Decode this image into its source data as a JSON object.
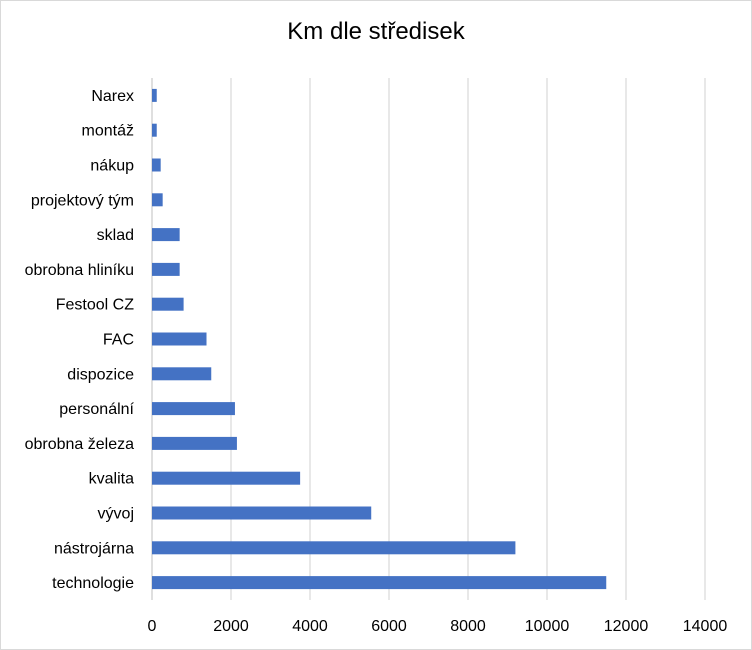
{
  "chart_data": {
    "type": "bar",
    "orientation": "horizontal",
    "title": "Km dle středisek",
    "xlabel": "",
    "ylabel": "",
    "categories": [
      "technologie",
      "nástrojárna",
      "vývoj",
      "kvalita",
      "obrobna železa",
      "personální",
      "dispozice",
      "FAC",
      "Festool CZ",
      "obrobna hliníku",
      "sklad",
      "projektový tým",
      "nákup",
      "montáž",
      "Narex"
    ],
    "values": [
      11500,
      9200,
      5550,
      3750,
      2150,
      2100,
      1500,
      1380,
      800,
      700,
      700,
      270,
      220,
      120,
      120
    ],
    "xlim": [
      0,
      14000
    ],
    "xticks": [
      0,
      2000,
      4000,
      6000,
      8000,
      10000,
      12000,
      14000
    ],
    "grid": "vertical",
    "legend": "none",
    "colors": {
      "bar": "#4472c4",
      "grid": "#d0d0d0",
      "axis": "#bfbfbf"
    }
  }
}
